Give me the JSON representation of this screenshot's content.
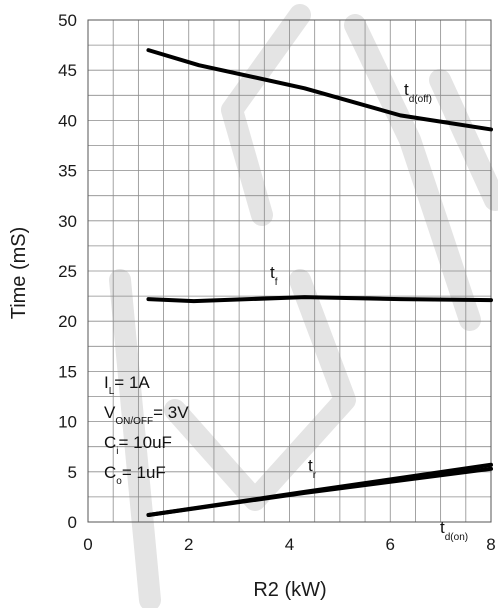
{
  "chart_data": {
    "type": "line",
    "xlabel": "R2 (kW)",
    "ylabel": "Time (mS)",
    "xlim": [
      0,
      8
    ],
    "ylim": [
      0,
      50
    ],
    "x_ticks": [
      "0",
      "2",
      "4",
      "6",
      "8"
    ],
    "y_ticks": [
      "0",
      "5",
      "10",
      "15",
      "20",
      "25",
      "30",
      "35",
      "40",
      "45",
      "50"
    ],
    "grid": true,
    "series": [
      {
        "name": "td(off)",
        "label_main": "t",
        "label_sub": "d(off)",
        "x": [
          1.2,
          2.2,
          4.3,
          6.2,
          8.0
        ],
        "y": [
          47.0,
          45.5,
          43.2,
          40.5,
          39.1
        ]
      },
      {
        "name": "tf",
        "label_main": "t",
        "label_sub": "f",
        "x": [
          1.2,
          2.1,
          4.3,
          6.2,
          8.0
        ],
        "y": [
          22.2,
          22.0,
          22.4,
          22.2,
          22.1
        ]
      },
      {
        "name": "tr",
        "label_main": "t",
        "label_sub": "r",
        "x": [
          1.2,
          4.3,
          8.0
        ],
        "y": [
          0.7,
          3.0,
          5.7
        ]
      },
      {
        "name": "td(on)",
        "label_main": "t",
        "label_sub": "d(on)",
        "x": [
          1.2,
          4.3,
          8.0
        ],
        "y": [
          0.7,
          2.9,
          5.3
        ]
      }
    ],
    "conditions": [
      {
        "main": "I",
        "sub": "L",
        "rest": "= 1A"
      },
      {
        "main": "V",
        "sub": "ON/OFF",
        "rest": "= 3V"
      },
      {
        "main": "C",
        "sub": "i",
        "rest": "= 10uF"
      },
      {
        "main": "C",
        "sub": "o",
        "rest": "= 1uF"
      }
    ]
  }
}
